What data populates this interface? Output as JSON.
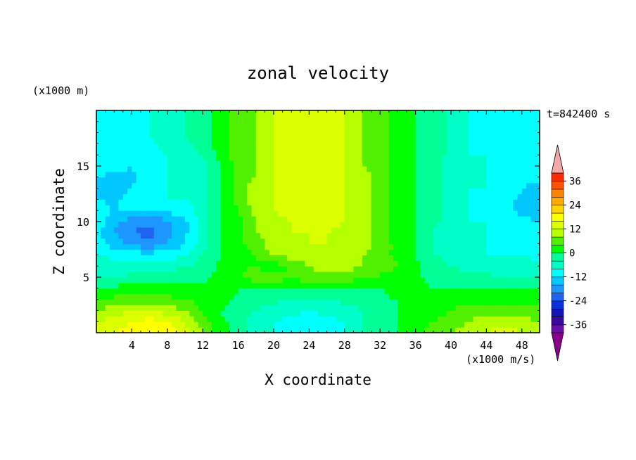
{
  "chart_data": {
    "type": "heatmap",
    "title": "zonal velocity",
    "xlabel": "X coordinate",
    "ylabel": "Z coordinate",
    "x_unit": "(x1000 m/s)",
    "z_unit": "(x1000 m)",
    "time_label": "t=842400 s",
    "xlim": [
      0,
      50
    ],
    "ylim": [
      0,
      20
    ],
    "x_ticks": [
      4,
      8,
      12,
      16,
      20,
      24,
      28,
      32,
      36,
      40,
      44,
      48
    ],
    "y_ticks": [
      5,
      10,
      15
    ],
    "colorbar": {
      "levels": [
        -40,
        -36,
        -32,
        -28,
        -24,
        -20,
        -16,
        -12,
        -8,
        -4,
        0,
        4,
        8,
        12,
        16,
        20,
        24,
        28,
        32,
        36,
        40
      ],
      "colors": [
        "#6a0dad",
        "#3a0aa0",
        "#1414b4",
        "#0a32dc",
        "#1e64f0",
        "#1e96ff",
        "#00c8ff",
        "#00ffff",
        "#00ffc8",
        "#00ff96",
        "#00ff00",
        "#50f000",
        "#b4ff00",
        "#dcff00",
        "#ffff00",
        "#ffd200",
        "#ffaa00",
        "#ff8200",
        "#ff5000",
        "#ff2800"
      ],
      "tick_labels": [
        -36,
        -24,
        -12,
        0,
        12,
        24,
        36
      ],
      "under_color": "#8b008b",
      "over_color": "#f4a7a7"
    },
    "z_rows": [
      0,
      1,
      2,
      3,
      4,
      5,
      6,
      7,
      8,
      9,
      10,
      11,
      12,
      13,
      14,
      15,
      16,
      17,
      18,
      19,
      20
    ],
    "x_cols": [
      0,
      2,
      4,
      6,
      8,
      10,
      12,
      14,
      16,
      18,
      20,
      22,
      24,
      26,
      28,
      30,
      32,
      34,
      36,
      38,
      40,
      42,
      44,
      46,
      48,
      50
    ],
    "values": [
      [
        14,
        16,
        18,
        20,
        18,
        14,
        8,
        2,
        -2,
        -6,
        -8,
        -10,
        -12,
        -10,
        -8,
        -4,
        -2,
        0,
        2,
        6,
        8,
        10,
        12,
        14,
        12,
        10
      ],
      [
        12,
        14,
        16,
        18,
        16,
        12,
        6,
        1,
        -2,
        -6,
        -8,
        -9,
        -10,
        -9,
        -8,
        -4,
        -2,
        0,
        2,
        4,
        6,
        8,
        10,
        10,
        10,
        8
      ],
      [
        8,
        10,
        12,
        12,
        10,
        8,
        4,
        0,
        -2,
        -4,
        -6,
        -7,
        -8,
        -7,
        -6,
        -4,
        -2,
        0,
        1,
        2,
        4,
        6,
        6,
        6,
        6,
        5
      ],
      [
        4,
        5,
        6,
        6,
        5,
        4,
        2,
        1,
        -1,
        -2,
        -3,
        -4,
        -4,
        -4,
        -3,
        -2,
        -1,
        0,
        0,
        1,
        2,
        3,
        3,
        3,
        2,
        2
      ],
      [
        0,
        1,
        2,
        2,
        2,
        1,
        1,
        2,
        0,
        0,
        0,
        -1,
        0,
        -1,
        -1,
        0,
        0,
        2,
        1,
        0,
        0,
        0,
        0,
        0,
        0,
        0
      ],
      [
        -4,
        -4,
        -3,
        -3,
        -3,
        -2,
        -1,
        1,
        4,
        6,
        6,
        5,
        6,
        6,
        6,
        5,
        3,
        2,
        1,
        -2,
        -2,
        -3,
        -3,
        -4,
        -4,
        -4
      ],
      [
        -6,
        -6,
        -6,
        -5,
        -5,
        -4,
        -2,
        1,
        3,
        4,
        2,
        4,
        8,
        10,
        10,
        8,
        6,
        4,
        1,
        -2,
        -4,
        -5,
        -6,
        -6,
        -6,
        -7
      ],
      [
        -8,
        -9,
        -10,
        -10,
        -10,
        -8,
        -4,
        0,
        2,
        4,
        8,
        10,
        10,
        10,
        10,
        8,
        5,
        3,
        0,
        -4,
        -5,
        -6,
        -8,
        -8,
        -8,
        -9
      ],
      [
        -10,
        -14,
        -17,
        -19,
        -16,
        -12,
        -6,
        0,
        3,
        6,
        10,
        11,
        12,
        12,
        11,
        10,
        6,
        3,
        0,
        -4,
        -6,
        -8,
        -8,
        -9,
        -10,
        -10
      ],
      [
        -10,
        -16,
        -20,
        -22,
        -18,
        -13,
        -6,
        0,
        3,
        8,
        11,
        12,
        12,
        12,
        11,
        10,
        6,
        2,
        0,
        -4,
        -6,
        -8,
        -8,
        -10,
        -10,
        -10
      ],
      [
        -10,
        -15,
        -18,
        -19,
        -17,
        -13,
        -6,
        0,
        3,
        8,
        11,
        12,
        13,
        13,
        12,
        10,
        6,
        2,
        0,
        -3,
        -6,
        -8,
        -8,
        -10,
        -11,
        -12
      ],
      [
        -10,
        -12,
        -12,
        -12,
        -11,
        -10,
        -6,
        0,
        4,
        10,
        12,
        13,
        13,
        13,
        12,
        10,
        6,
        2,
        0,
        -2,
        -6,
        -8,
        -9,
        -11,
        -13,
        -14
      ],
      [
        -12,
        -13,
        -10,
        -9,
        -8,
        -8,
        -6,
        0,
        6,
        10,
        12,
        13,
        13,
        13,
        12,
        10,
        6,
        2,
        0,
        -2,
        -6,
        -8,
        -9,
        -11,
        -13,
        -14
      ],
      [
        -14,
        -14,
        -12,
        -9,
        -8,
        -8,
        -6,
        0,
        6,
        10,
        12,
        13,
        14,
        13,
        12,
        10,
        6,
        2,
        0,
        -2,
        -6,
        -8,
        -8,
        -10,
        -12,
        -13
      ],
      [
        -12,
        -13,
        -13,
        -10,
        -8,
        -7,
        -6,
        0,
        6,
        8,
        12,
        13,
        14,
        13,
        12,
        10,
        6,
        2,
        0,
        -2,
        -6,
        -8,
        -8,
        -10,
        -11,
        -11
      ],
      [
        -10,
        -11,
        -12,
        -10,
        -8,
        -7,
        -5,
        0,
        6,
        8,
        12,
        13,
        13,
        13,
        12,
        8,
        6,
        2,
        0,
        -2,
        -6,
        -8,
        -8,
        -10,
        -10,
        -10
      ],
      [
        -10,
        -10,
        -10,
        -9,
        -8,
        -6,
        -4,
        1,
        6,
        8,
        12,
        12,
        12,
        12,
        12,
        8,
        6,
        2,
        0,
        -2,
        -5,
        -8,
        -8,
        -10,
        -10,
        -10
      ],
      [
        -10,
        -10,
        -10,
        -9,
        -7,
        -5,
        -2,
        2,
        6,
        8,
        12,
        12,
        12,
        12,
        12,
        8,
        6,
        2,
        0,
        -2,
        -5,
        -8,
        -9,
        -10,
        -10,
        -10
      ],
      [
        -10,
        -10,
        -10,
        -8,
        -6,
        -4,
        -2,
        2,
        6,
        8,
        12,
        12,
        12,
        12,
        12,
        8,
        6,
        2,
        0,
        -2,
        -5,
        -8,
        -9,
        -10,
        -10,
        -10
      ],
      [
        -10,
        -10,
        -10,
        -8,
        -6,
        -4,
        -2,
        2,
        6,
        8,
        12,
        12,
        12,
        12,
        12,
        8,
        6,
        2,
        0,
        -2,
        -5,
        -8,
        -9,
        -10,
        -10,
        -10
      ],
      [
        -10,
        -10,
        -10,
        -8,
        -6,
        -4,
        -2,
        2,
        6,
        8,
        12,
        12,
        12,
        12,
        12,
        8,
        6,
        2,
        0,
        -2,
        -5,
        -8,
        -9,
        -10,
        -10,
        -10
      ]
    ]
  }
}
